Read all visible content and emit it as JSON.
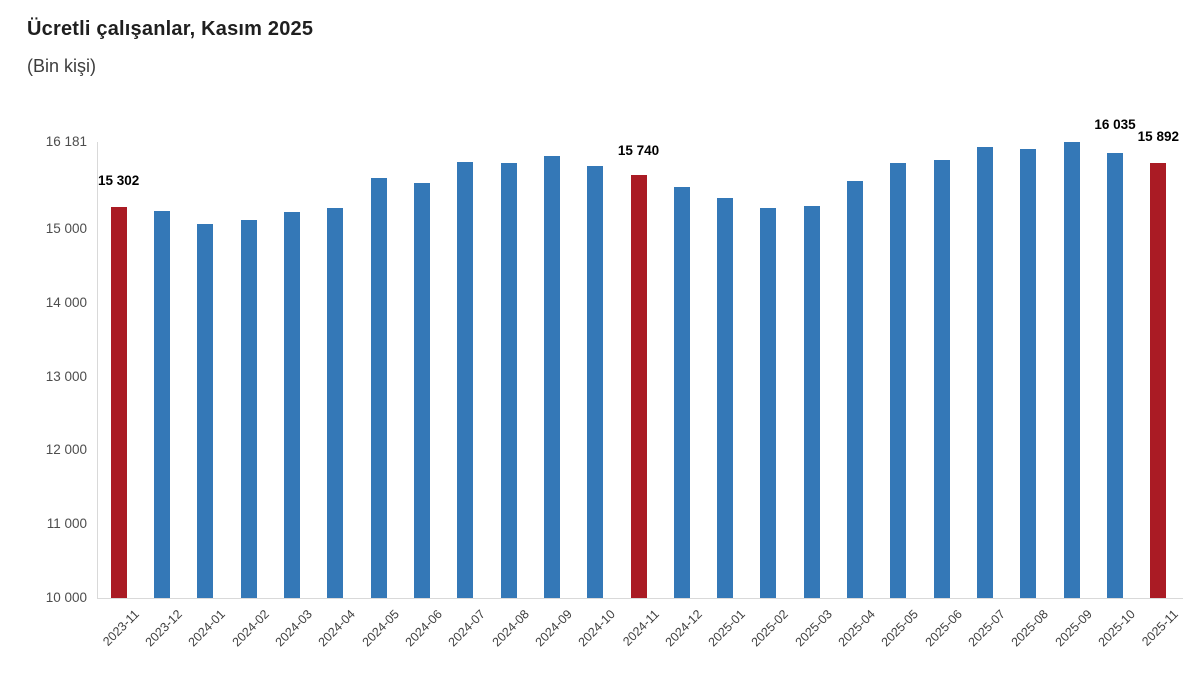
{
  "header": {
    "title": "Ücretli çalışanlar, Kasım 2025",
    "subtitle": "(Bin kişi)"
  },
  "chart_data": {
    "type": "bar",
    "title": "Ücretli çalışanlar, Kasım 2025",
    "unit_label": "(Bin kişi)",
    "xlabel": "",
    "ylabel": "",
    "grid": false,
    "legend": null,
    "ylim": [
      10000,
      16181
    ],
    "categories": [
      "2023-11",
      "2023-12",
      "2024-01",
      "2024-02",
      "2024-03",
      "2024-04",
      "2024-05",
      "2024-06",
      "2024-07",
      "2024-08",
      "2024-09",
      "2024-10",
      "2024-11",
      "2024-12",
      "2025-01",
      "2025-02",
      "2025-03",
      "2025-04",
      "2025-05",
      "2025-06",
      "2025-07",
      "2025-08",
      "2025-09",
      "2025-10",
      "2025-11"
    ],
    "values": [
      15302,
      15245,
      15065,
      15125,
      15235,
      15290,
      15690,
      15620,
      15905,
      15895,
      15990,
      15860,
      15740,
      15570,
      15420,
      15290,
      15310,
      15650,
      15895,
      15940,
      16110,
      16090,
      16181,
      16035,
      15892
    ],
    "highlight_indices": [
      0,
      12,
      24
    ],
    "colors": {
      "bar_default": "#3478b7",
      "bar_highlight": "#aa1b24",
      "axis_line": "#d9d9d9",
      "y_tick_text": "#4d4d4d",
      "x_tick_text": "#3f3f3f",
      "value_label_text": "#000000"
    },
    "y_ticks": [
      {
        "value": 10000,
        "label": "10 000"
      },
      {
        "value": 11000,
        "label": "11 000"
      },
      {
        "value": 12000,
        "label": "12 000"
      },
      {
        "value": 13000,
        "label": "13 000"
      },
      {
        "value": 14000,
        "label": "14 000"
      },
      {
        "value": 15000,
        "label": "15 000"
      },
      {
        "value": 16181,
        "label": "16 181"
      }
    ],
    "value_labels": [
      {
        "index": 0,
        "text": "15 302",
        "dy": -26
      },
      {
        "index": 12,
        "text": "15 740",
        "dy": -24
      },
      {
        "index": 23,
        "text": "16 035",
        "dy": -28
      },
      {
        "index": 24,
        "text": "15 892",
        "dy": -26
      }
    ]
  }
}
